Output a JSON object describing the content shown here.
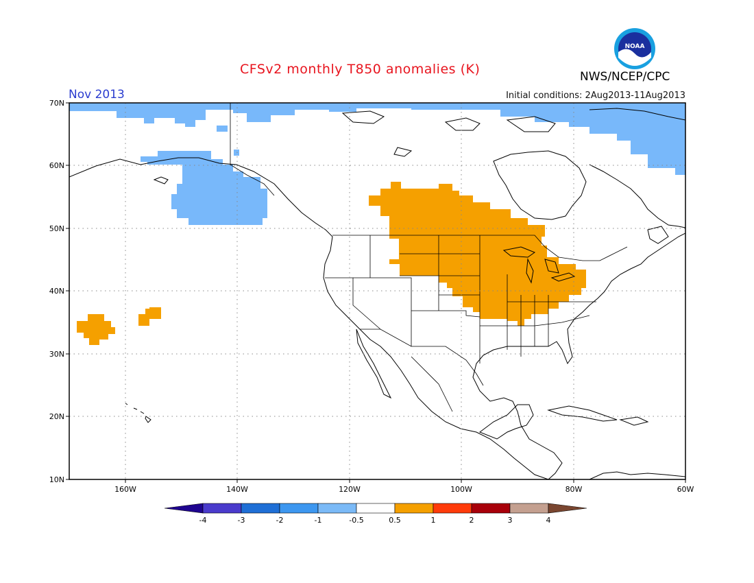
{
  "title": "CFSv2 monthly T850 anomalies (K)",
  "agency": "NWS/NCEP/CPC",
  "logo_text": "NOAA",
  "month": "Nov 2013",
  "initial_conditions": "Initial conditions: 2Aug2013-11Aug2013",
  "map": {
    "region": "North America",
    "lon_range": [
      -170,
      -60
    ],
    "lat_range": [
      10,
      70
    ],
    "lat_ticks": [
      "70N",
      "60N",
      "50N",
      "40N",
      "30N",
      "20N",
      "10N"
    ],
    "lon_ticks": [
      "160W",
      "140W",
      "120W",
      "100W",
      "80W",
      "60W"
    ],
    "grid": "dotted"
  },
  "colorbar": {
    "labels": [
      "-4",
      "-3",
      "-2",
      "-1",
      "-0.5",
      "0.5",
      "1",
      "2",
      "3",
      "4"
    ],
    "colors": [
      "#1f0590",
      "#4a3bcc",
      "#1f6fd6",
      "#3d97f0",
      "#7bbaf7",
      "#ffffff",
      "#f5a000",
      "#ff3b0a",
      "#a8000a",
      "#c4a090",
      "#7a4630"
    ]
  },
  "anomaly_regions": [
    {
      "name": "negative anomaly -0.5 to -1",
      "color": "#78b8fa"
    },
    {
      "name": "positive anomaly 0.5 to 1",
      "color": "#f5a000"
    }
  ]
}
